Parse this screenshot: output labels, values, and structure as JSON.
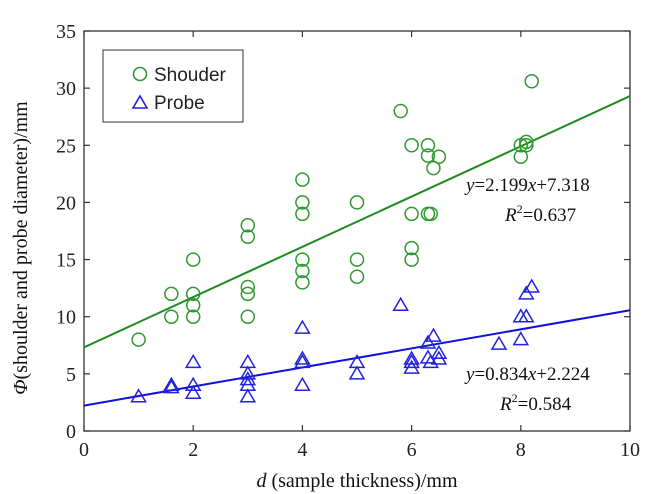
{
  "chart_data": {
    "type": "scatter",
    "xlabel_var": "d",
    "xlabel_rest": " (sample thickness)/mm",
    "ylabel_var": "Φ",
    "ylabel_rest": "(shoulder and probe diameter)/mm",
    "xlim": [
      0,
      10
    ],
    "ylim": [
      0,
      35
    ],
    "xticks": [
      0,
      2,
      4,
      6,
      8,
      10
    ],
    "yticks": [
      0,
      5,
      10,
      15,
      20,
      25,
      30,
      35
    ],
    "grid": false,
    "legend_position": "top-left",
    "series": [
      {
        "name": "Shouder",
        "marker": "circle",
        "color": "#2e9a2e",
        "points": [
          [
            1,
            8
          ],
          [
            1.6,
            12
          ],
          [
            1.6,
            10
          ],
          [
            2,
            15
          ],
          [
            2,
            12
          ],
          [
            2,
            11
          ],
          [
            2,
            10
          ],
          [
            3,
            18
          ],
          [
            3,
            17
          ],
          [
            3,
            12.6
          ],
          [
            3,
            12
          ],
          [
            3,
            10
          ],
          [
            4,
            22
          ],
          [
            4,
            20
          ],
          [
            4,
            19
          ],
          [
            4,
            15
          ],
          [
            4,
            14
          ],
          [
            4,
            13
          ],
          [
            5,
            20
          ],
          [
            5,
            15
          ],
          [
            5,
            13.5
          ],
          [
            5.8,
            28
          ],
          [
            6,
            25
          ],
          [
            6,
            19
          ],
          [
            6,
            16
          ],
          [
            6,
            15
          ],
          [
            6.3,
            25
          ],
          [
            6.3,
            24.1
          ],
          [
            6.3,
            19
          ],
          [
            6.35,
            19
          ],
          [
            6.4,
            23
          ],
          [
            6.5,
            24
          ],
          [
            8,
            25
          ],
          [
            8,
            24
          ],
          [
            8.1,
            25.3
          ],
          [
            8.1,
            25
          ],
          [
            8.2,
            30.6
          ]
        ],
        "fit": {
          "slope": 2.199,
          "intercept": 7.318,
          "color": "#1f8a1f"
        },
        "equation": {
          "y": "y",
          "eq": "=2.199",
          "x": "x",
          "rest": "+7.318"
        },
        "r2": {
          "r": "R",
          "exp": "2",
          "val": "=0.637"
        }
      },
      {
        "name": "Probe",
        "marker": "triangle",
        "color": "#2222dd",
        "points": [
          [
            1,
            3
          ],
          [
            1.6,
            4
          ],
          [
            1.6,
            3.8
          ],
          [
            2,
            6
          ],
          [
            2,
            4
          ],
          [
            2,
            3.3
          ],
          [
            3,
            6
          ],
          [
            3,
            5
          ],
          [
            3,
            4.5
          ],
          [
            3,
            4
          ],
          [
            3,
            3
          ],
          [
            4,
            9
          ],
          [
            4,
            6.3
          ],
          [
            4,
            6
          ],
          [
            4,
            4
          ],
          [
            5,
            6
          ],
          [
            5,
            5
          ],
          [
            5.8,
            11
          ],
          [
            6,
            6.3
          ],
          [
            6,
            6
          ],
          [
            6,
            5.5
          ],
          [
            6.3,
            7.7
          ],
          [
            6.3,
            6.4
          ],
          [
            6.35,
            6
          ],
          [
            6.4,
            8.3
          ],
          [
            6.5,
            6.3
          ],
          [
            6.5,
            6.8
          ],
          [
            7.6,
            7.6
          ],
          [
            8,
            10
          ],
          [
            8,
            8
          ],
          [
            8.1,
            12
          ],
          [
            8.1,
            10
          ],
          [
            8.2,
            12.6
          ]
        ],
        "fit": {
          "slope": 0.834,
          "intercept": 2.224,
          "color": "#1111dd"
        },
        "equation": {
          "y": "y",
          "eq": "=0.834",
          "x": "x",
          "rest": "+2.224"
        },
        "r2": {
          "r": "R",
          "exp": "2",
          "val": "=0.584"
        }
      }
    ]
  }
}
